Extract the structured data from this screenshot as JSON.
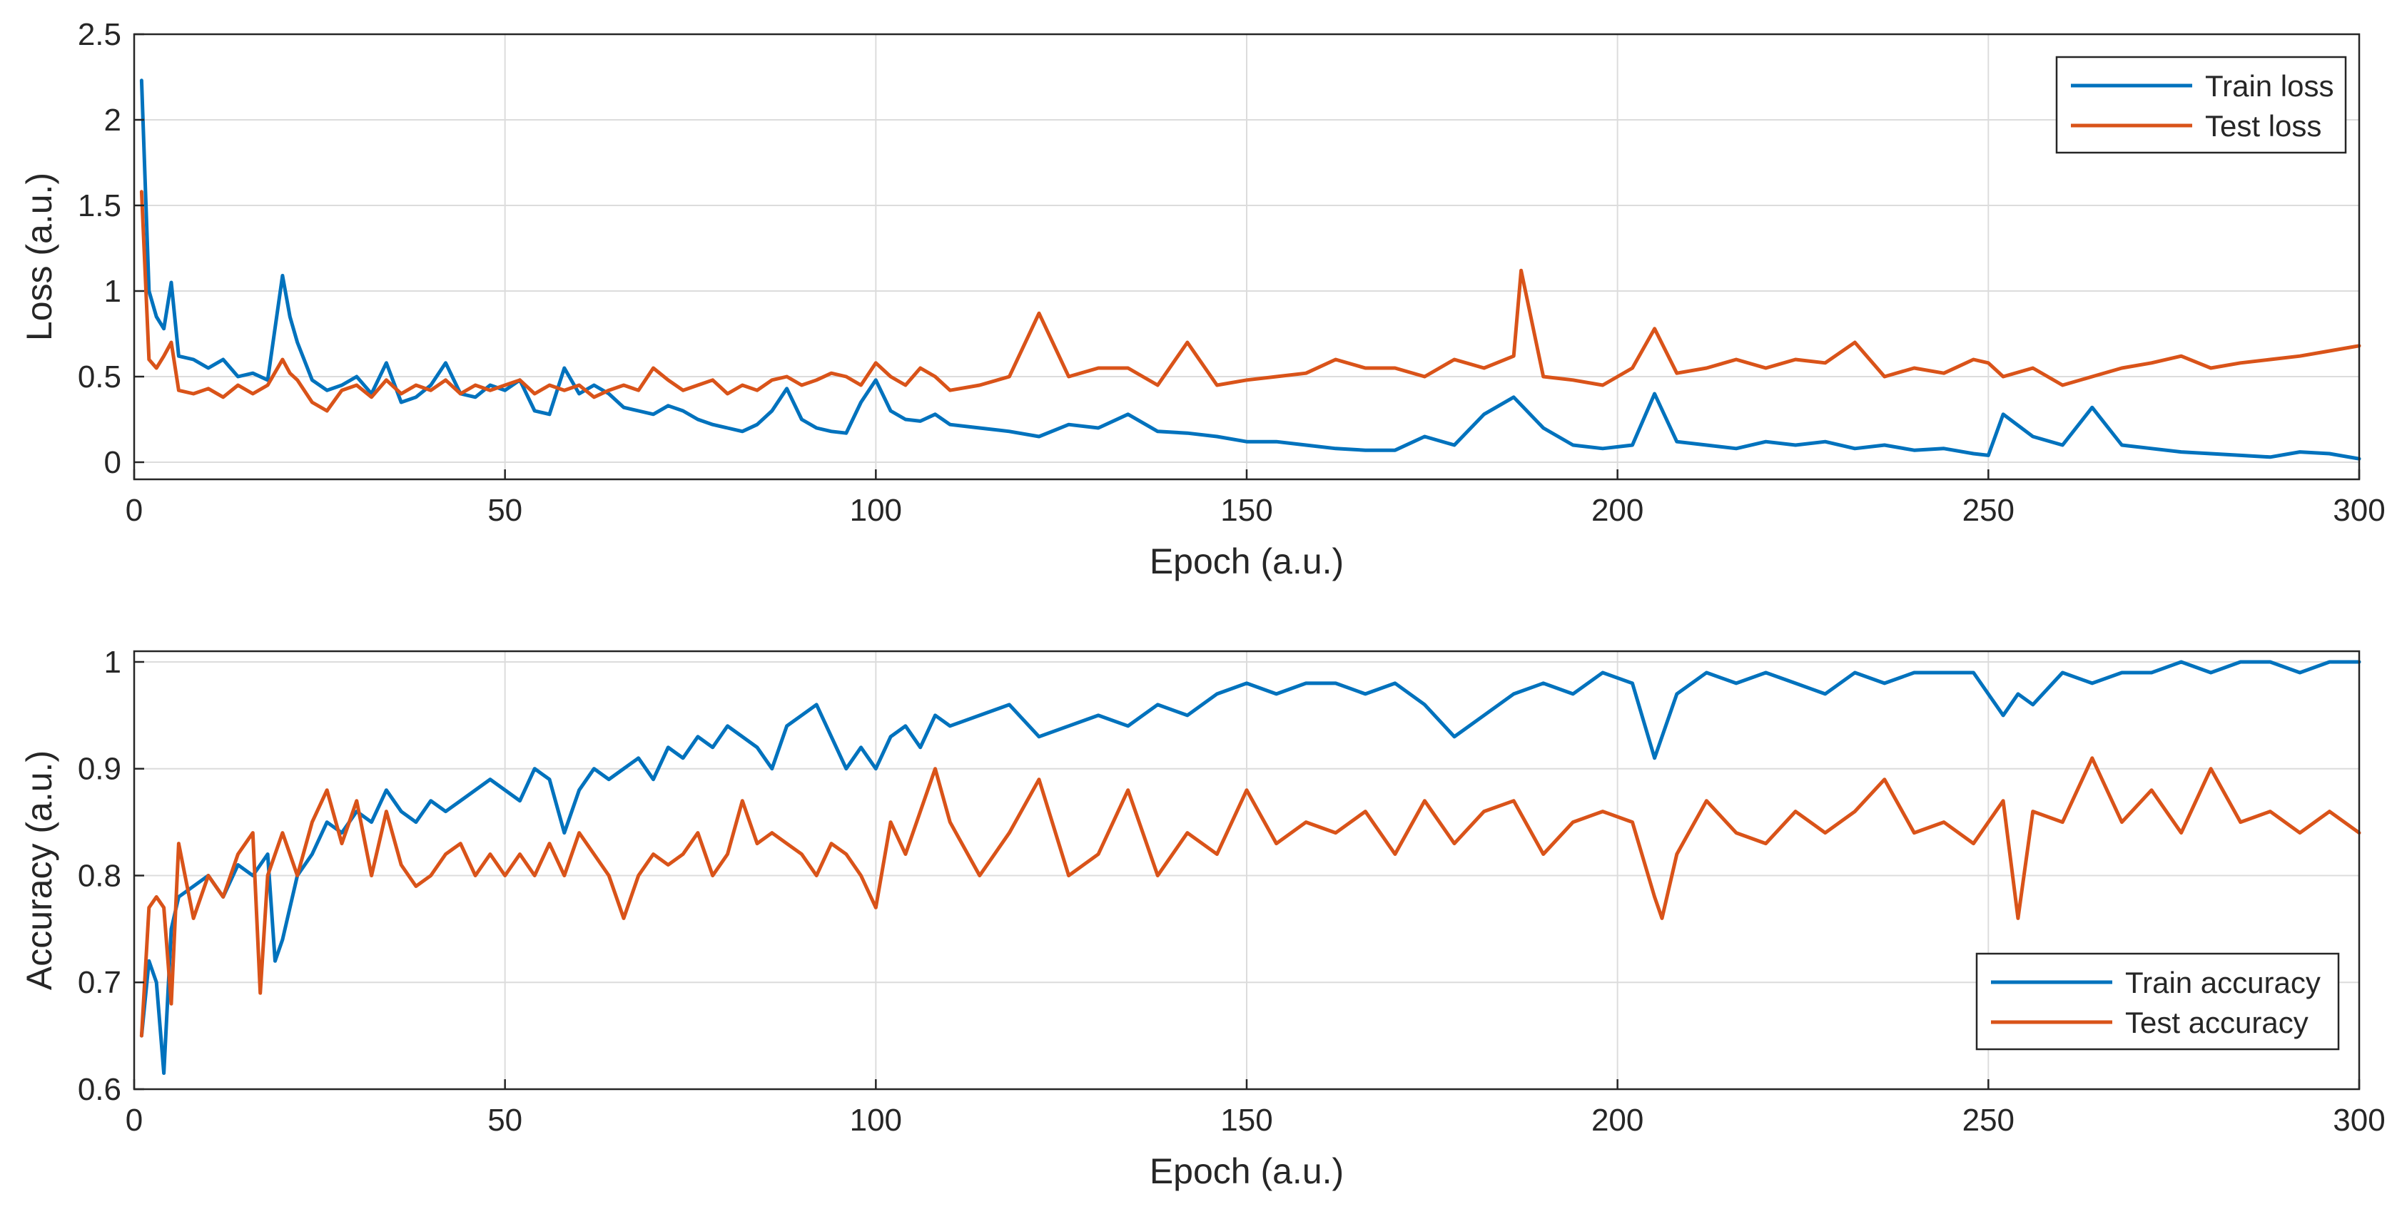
{
  "colors": {
    "train": "#0072BD",
    "test": "#D95319",
    "grid": "#dcdcdc",
    "axis": "#262626"
  },
  "chart_data": [
    {
      "type": "line",
      "title": "",
      "xlabel": "Epoch (a.u.)",
      "ylabel": "Loss (a.u.)",
      "xlim": [
        0,
        300
      ],
      "ylim": [
        -0.1,
        2.5
      ],
      "xticks": [
        0,
        50,
        100,
        150,
        200,
        250,
        300
      ],
      "xtick_labels": [
        "0",
        "50",
        "100",
        "150",
        "200",
        "250",
        "300"
      ],
      "yticks": [
        0,
        0.5,
        1,
        1.5,
        2,
        2.5
      ],
      "ytick_labels": [
        "0",
        "0.5",
        "1",
        "1.5",
        "2",
        "2.5"
      ],
      "grid": true,
      "legend_position": "top-right",
      "series": [
        {
          "name": "Train loss",
          "color_key": "train",
          "x": [
            1,
            2,
            3,
            4,
            5,
            6,
            8,
            10,
            12,
            14,
            16,
            18,
            20,
            21,
            22,
            24,
            26,
            28,
            30,
            32,
            34,
            36,
            38,
            40,
            42,
            44,
            46,
            48,
            50,
            52,
            54,
            56,
            58,
            60,
            62,
            64,
            66,
            68,
            70,
            72,
            74,
            76,
            78,
            80,
            82,
            84,
            86,
            88,
            90,
            92,
            94,
            96,
            98,
            100,
            102,
            104,
            106,
            108,
            110,
            114,
            118,
            122,
            126,
            130,
            134,
            138,
            142,
            146,
            150,
            154,
            158,
            162,
            166,
            170,
            174,
            178,
            182,
            186,
            190,
            194,
            198,
            202,
            205,
            208,
            212,
            216,
            220,
            224,
            228,
            232,
            236,
            240,
            244,
            248,
            250,
            252,
            256,
            260,
            264,
            268,
            272,
            276,
            280,
            284,
            288,
            292,
            296,
            300
          ],
          "y": [
            2.23,
            1.0,
            0.85,
            0.78,
            1.05,
            0.62,
            0.6,
            0.55,
            0.6,
            0.5,
            0.52,
            0.48,
            1.09,
            0.85,
            0.7,
            0.48,
            0.42,
            0.45,
            0.5,
            0.4,
            0.58,
            0.35,
            0.38,
            0.45,
            0.58,
            0.4,
            0.38,
            0.45,
            0.42,
            0.48,
            0.3,
            0.28,
            0.55,
            0.4,
            0.45,
            0.4,
            0.32,
            0.3,
            0.28,
            0.33,
            0.3,
            0.25,
            0.22,
            0.2,
            0.18,
            0.22,
            0.3,
            0.43,
            0.25,
            0.2,
            0.18,
            0.17,
            0.35,
            0.48,
            0.3,
            0.25,
            0.24,
            0.28,
            0.22,
            0.2,
            0.18,
            0.15,
            0.22,
            0.2,
            0.28,
            0.18,
            0.17,
            0.15,
            0.12,
            0.12,
            0.1,
            0.08,
            0.07,
            0.07,
            0.15,
            0.1,
            0.28,
            0.38,
            0.2,
            0.1,
            0.08,
            0.1,
            0.4,
            0.12,
            0.1,
            0.08,
            0.12,
            0.1,
            0.12,
            0.08,
            0.1,
            0.07,
            0.08,
            0.05,
            0.04,
            0.28,
            0.15,
            0.1,
            0.32,
            0.1,
            0.08,
            0.06,
            0.05,
            0.04,
            0.03,
            0.06,
            0.05,
            0.02
          ]
        },
        {
          "name": "Test loss",
          "color_key": "test",
          "x": [
            1,
            2,
            3,
            4,
            5,
            6,
            8,
            10,
            12,
            14,
            16,
            18,
            20,
            21,
            22,
            24,
            26,
            28,
            30,
            32,
            34,
            36,
            38,
            40,
            42,
            44,
            46,
            48,
            50,
            52,
            54,
            56,
            58,
            60,
            62,
            64,
            66,
            68,
            70,
            72,
            74,
            76,
            78,
            80,
            82,
            84,
            86,
            88,
            90,
            92,
            94,
            96,
            98,
            100,
            102,
            104,
            106,
            108,
            110,
            114,
            118,
            122,
            126,
            130,
            134,
            138,
            142,
            146,
            150,
            154,
            158,
            162,
            166,
            170,
            174,
            178,
            182,
            186,
            187,
            190,
            194,
            198,
            202,
            205,
            208,
            212,
            216,
            220,
            224,
            228,
            232,
            236,
            240,
            244,
            248,
            250,
            252,
            256,
            260,
            264,
            268,
            272,
            276,
            280,
            284,
            288,
            292,
            296,
            300
          ],
          "y": [
            1.58,
            0.6,
            0.55,
            0.62,
            0.7,
            0.42,
            0.4,
            0.43,
            0.38,
            0.45,
            0.4,
            0.45,
            0.6,
            0.52,
            0.48,
            0.35,
            0.3,
            0.42,
            0.45,
            0.38,
            0.48,
            0.4,
            0.45,
            0.42,
            0.48,
            0.4,
            0.45,
            0.42,
            0.45,
            0.48,
            0.4,
            0.45,
            0.42,
            0.45,
            0.38,
            0.42,
            0.45,
            0.42,
            0.55,
            0.48,
            0.42,
            0.45,
            0.48,
            0.4,
            0.45,
            0.42,
            0.48,
            0.5,
            0.45,
            0.48,
            0.52,
            0.5,
            0.45,
            0.58,
            0.5,
            0.45,
            0.55,
            0.5,
            0.42,
            0.45,
            0.5,
            0.87,
            0.5,
            0.55,
            0.55,
            0.45,
            0.7,
            0.45,
            0.48,
            0.5,
            0.52,
            0.6,
            0.55,
            0.55,
            0.5,
            0.6,
            0.55,
            0.62,
            1.12,
            0.5,
            0.48,
            0.45,
            0.55,
            0.78,
            0.52,
            0.55,
            0.6,
            0.55,
            0.6,
            0.58,
            0.7,
            0.5,
            0.55,
            0.52,
            0.6,
            0.58,
            0.5,
            0.55,
            0.45,
            0.5,
            0.55,
            0.58,
            0.62,
            0.55,
            0.58,
            0.6,
            0.62,
            0.65,
            0.68
          ]
        }
      ]
    },
    {
      "type": "line",
      "title": "",
      "xlabel": "Epoch (a.u.)",
      "ylabel": "Accuracy (a.u.)",
      "xlim": [
        0,
        300
      ],
      "ylim": [
        0.6,
        1.01
      ],
      "xticks": [
        0,
        50,
        100,
        150,
        200,
        250,
        300
      ],
      "xtick_labels": [
        "0",
        "50",
        "100",
        "150",
        "200",
        "250",
        "300"
      ],
      "yticks": [
        0.6,
        0.7,
        0.8,
        0.9,
        1
      ],
      "ytick_labels": [
        "0.6",
        "0.7",
        "0.8",
        "0.9",
        "1"
      ],
      "grid": true,
      "legend_position": "bottom-right",
      "series": [
        {
          "name": "Train accuracy",
          "color_key": "train",
          "x": [
            1,
            2,
            3,
            4,
            5,
            6,
            8,
            10,
            12,
            14,
            16,
            18,
            19,
            20,
            22,
            24,
            26,
            28,
            30,
            32,
            34,
            36,
            38,
            40,
            42,
            44,
            46,
            48,
            50,
            52,
            54,
            56,
            58,
            60,
            62,
            64,
            66,
            68,
            70,
            72,
            74,
            76,
            78,
            80,
            82,
            84,
            86,
            88,
            90,
            92,
            94,
            96,
            98,
            100,
            102,
            104,
            106,
            108,
            110,
            114,
            118,
            122,
            126,
            130,
            134,
            138,
            142,
            146,
            150,
            154,
            158,
            162,
            166,
            170,
            174,
            178,
            182,
            186,
            190,
            194,
            198,
            202,
            205,
            208,
            212,
            216,
            220,
            224,
            228,
            232,
            236,
            240,
            244,
            248,
            252,
            254,
            256,
            260,
            264,
            268,
            272,
            276,
            280,
            284,
            288,
            292,
            296,
            300
          ],
          "y": [
            0.65,
            0.72,
            0.7,
            0.615,
            0.75,
            0.78,
            0.79,
            0.8,
            0.78,
            0.81,
            0.8,
            0.82,
            0.72,
            0.74,
            0.8,
            0.82,
            0.85,
            0.84,
            0.86,
            0.85,
            0.88,
            0.86,
            0.85,
            0.87,
            0.86,
            0.87,
            0.88,
            0.89,
            0.88,
            0.87,
            0.9,
            0.89,
            0.84,
            0.88,
            0.9,
            0.89,
            0.9,
            0.91,
            0.89,
            0.92,
            0.91,
            0.93,
            0.92,
            0.94,
            0.93,
            0.92,
            0.9,
            0.94,
            0.95,
            0.96,
            0.93,
            0.9,
            0.92,
            0.9,
            0.93,
            0.94,
            0.92,
            0.95,
            0.94,
            0.95,
            0.96,
            0.93,
            0.94,
            0.95,
            0.94,
            0.96,
            0.95,
            0.97,
            0.98,
            0.97,
            0.98,
            0.98,
            0.97,
            0.98,
            0.96,
            0.93,
            0.95,
            0.97,
            0.98,
            0.97,
            0.99,
            0.98,
            0.91,
            0.97,
            0.99,
            0.98,
            0.99,
            0.98,
            0.97,
            0.99,
            0.98,
            0.99,
            0.99,
            0.99,
            0.95,
            0.97,
            0.96,
            0.99,
            0.98,
            0.99,
            0.99,
            1.0,
            0.99,
            1.0,
            1.0,
            0.99,
            1.0,
            1.0
          ]
        },
        {
          "name": "Test accuracy",
          "color_key": "test",
          "x": [
            1,
            2,
            3,
            4,
            5,
            6,
            8,
            10,
            12,
            14,
            16,
            17,
            18,
            20,
            22,
            24,
            26,
            28,
            30,
            32,
            34,
            36,
            38,
            40,
            42,
            44,
            46,
            48,
            50,
            52,
            54,
            56,
            58,
            60,
            62,
            64,
            66,
            68,
            70,
            72,
            74,
            76,
            78,
            80,
            82,
            84,
            86,
            88,
            90,
            92,
            94,
            96,
            98,
            100,
            102,
            104,
            106,
            108,
            110,
            114,
            118,
            122,
            126,
            130,
            134,
            138,
            142,
            146,
            150,
            154,
            158,
            162,
            166,
            170,
            174,
            178,
            182,
            186,
            190,
            194,
            198,
            202,
            205,
            206,
            208,
            212,
            216,
            220,
            224,
            228,
            232,
            236,
            240,
            244,
            248,
            252,
            254,
            256,
            260,
            264,
            268,
            272,
            276,
            280,
            284,
            288,
            292,
            296,
            300
          ],
          "y": [
            0.65,
            0.77,
            0.78,
            0.77,
            0.68,
            0.83,
            0.76,
            0.8,
            0.78,
            0.82,
            0.84,
            0.69,
            0.8,
            0.84,
            0.8,
            0.85,
            0.88,
            0.83,
            0.87,
            0.8,
            0.86,
            0.81,
            0.79,
            0.8,
            0.82,
            0.83,
            0.8,
            0.82,
            0.8,
            0.82,
            0.8,
            0.83,
            0.8,
            0.84,
            0.82,
            0.8,
            0.76,
            0.8,
            0.82,
            0.81,
            0.82,
            0.84,
            0.8,
            0.82,
            0.87,
            0.83,
            0.84,
            0.83,
            0.82,
            0.8,
            0.83,
            0.82,
            0.8,
            0.77,
            0.85,
            0.82,
            0.86,
            0.9,
            0.85,
            0.8,
            0.84,
            0.89,
            0.8,
            0.82,
            0.88,
            0.8,
            0.84,
            0.82,
            0.88,
            0.83,
            0.85,
            0.84,
            0.86,
            0.82,
            0.87,
            0.83,
            0.86,
            0.87,
            0.82,
            0.85,
            0.86,
            0.85,
            0.78,
            0.76,
            0.82,
            0.87,
            0.84,
            0.83,
            0.86,
            0.84,
            0.86,
            0.89,
            0.84,
            0.85,
            0.83,
            0.87,
            0.76,
            0.86,
            0.85,
            0.91,
            0.85,
            0.88,
            0.84,
            0.9,
            0.85,
            0.86,
            0.84,
            0.86,
            0.84
          ]
        }
      ]
    }
  ]
}
